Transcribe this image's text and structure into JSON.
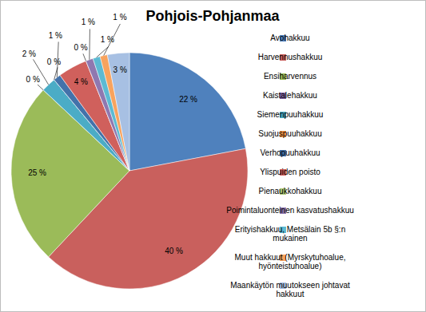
{
  "chart_data": {
    "type": "pie",
    "title": "Pohjois-Pohjanmaa",
    "categories": [
      "Avohakkuu",
      "Harvennushakkuu",
      "Ensiharvennus",
      "Kaistalehakkuu",
      "Siemenpuuhakkuu",
      "Suojuspuuhakkuu",
      "Verhopuuhakkuu",
      "Ylispuiden poisto",
      "Pienaukkohakkuu",
      "Poimintaluonteinen kasvatushakkuu",
      "Erityishakkuu, Metsälain 5b §:n mukainen",
      "Muut hakkuut (Myrskytuhoalue, hyönteistuhoalue)",
      "Maankäytön muutokseen johtavat hakkuut"
    ],
    "values": [
      22,
      40,
      25,
      0,
      2,
      0,
      1,
      4,
      0,
      1,
      1,
      1,
      3
    ],
    "value_labels": [
      "22 %",
      "40 %",
      "25 %",
      "0 %",
      "2 %",
      "0 %",
      "1 %",
      "4 %",
      "0 %",
      "1 %",
      "1 %",
      "1 %",
      "3 %"
    ],
    "colors": [
      "#4f81bd",
      "#c9605d",
      "#9bbb59",
      "#8064a2",
      "#4bacc6",
      "#f79646",
      "#4372aa",
      "#d0605c",
      "#b0cc7a",
      "#8f78b0",
      "#5cbad3",
      "#f8a35e",
      "#a7c0e3"
    ],
    "data_labels": true,
    "legend": "right"
  }
}
